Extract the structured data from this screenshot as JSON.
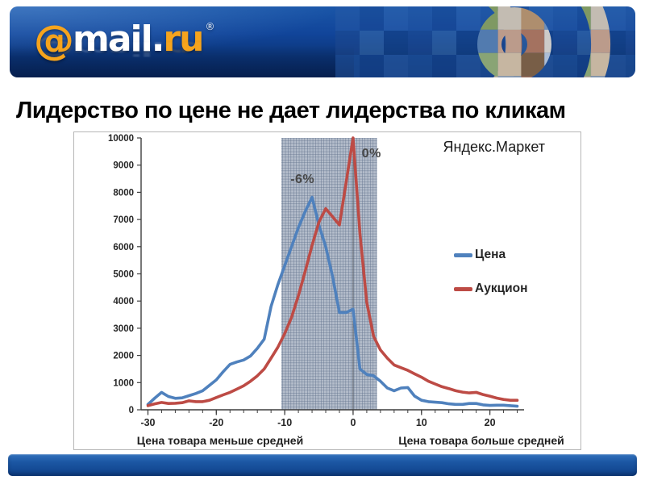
{
  "header": {
    "logo": {
      "at": "@",
      "name": "mail",
      "dot": ".",
      "tld": "ru",
      "registered": "®"
    }
  },
  "title": "Лидерство по цене не дает лидерства по кликам",
  "chart_data": {
    "type": "line",
    "source_label": "Яндекс.Маркет",
    "xlabel_left": "Цена товара меньше средней",
    "xlabel_right": "Цена товара больше средней",
    "xlim": [
      -31,
      25
    ],
    "ylim": [
      0,
      10000
    ],
    "y_ticks": [
      0,
      1000,
      2000,
      3000,
      4000,
      5000,
      6000,
      7000,
      8000,
      9000,
      10000
    ],
    "x_major_ticks": [
      -30,
      -20,
      -10,
      0,
      10,
      20
    ],
    "x_tick_range": [
      -30,
      24
    ],
    "x_minor_step": 2,
    "marker_line_x": 0,
    "axis_color": "#3f3f3f",
    "grid": false,
    "legend_position": "right",
    "shaded_region": {
      "x_from": -10.5,
      "x_to": 3.5
    },
    "x": [
      -30,
      -29,
      -28,
      -27,
      -26,
      -25,
      -24,
      -23,
      -22,
      -21,
      -20,
      -19,
      -18,
      -17,
      -16,
      -15,
      -14,
      -13,
      -12,
      -11,
      -10,
      -9,
      -8,
      -7,
      -6,
      -5,
      -4,
      -3,
      -2,
      -1,
      0,
      1,
      2,
      3,
      4,
      5,
      6,
      7,
      8,
      9,
      10,
      11,
      12,
      13,
      14,
      15,
      16,
      17,
      18,
      19,
      20,
      21,
      22,
      23,
      24
    ],
    "series": [
      {
        "name": "Цена",
        "color": "#4f81bd",
        "values": [
          200,
          430,
          640,
          490,
          420,
          440,
          520,
          600,
          700,
          900,
          1100,
          1400,
          1670,
          1760,
          1830,
          1980,
          2260,
          2600,
          3800,
          4600,
          5300,
          6000,
          6700,
          7300,
          7820,
          6800,
          6000,
          4900,
          3580,
          3580,
          3700,
          1500,
          1300,
          1250,
          1050,
          800,
          700,
          800,
          820,
          500,
          350,
          300,
          280,
          260,
          220,
          200,
          200,
          230,
          230,
          180,
          160,
          170,
          170,
          150,
          130
        ]
      },
      {
        "name": "Аукцион",
        "color": "#bd4b45",
        "values": [
          150,
          220,
          270,
          230,
          240,
          260,
          330,
          300,
          300,
          350,
          450,
          550,
          640,
          760,
          880,
          1050,
          1250,
          1500,
          1900,
          2300,
          2800,
          3400,
          4200,
          5100,
          6050,
          6900,
          7400,
          7100,
          6800,
          8400,
          10000,
          6500,
          3950,
          2700,
          2200,
          1900,
          1650,
          1550,
          1450,
          1320,
          1200,
          1050,
          950,
          850,
          780,
          700,
          650,
          620,
          640,
          560,
          500,
          430,
          380,
          350,
          350
        ]
      }
    ],
    "annotations": [
      {
        "text": "-6%",
        "x": -7.4,
        "y": 8450
      },
      {
        "text": "0%",
        "x": 2.7,
        "y": 9400
      }
    ]
  }
}
